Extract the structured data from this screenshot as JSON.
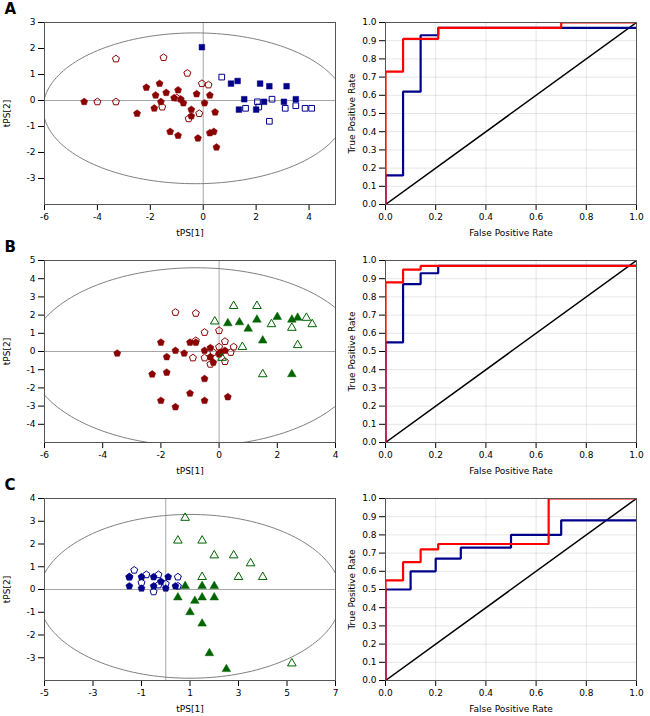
{
  "chart_data": [
    {
      "type": "scatter",
      "annotations": [
        "A"
      ],
      "xlabel": "tPS[1]",
      "ylabel": "tPS[2]",
      "xlim": [
        -6,
        5
      ],
      "xticks": [
        -6,
        -4,
        -2,
        0,
        2,
        4
      ],
      "ylim": [
        -4,
        3
      ],
      "yticks": [
        -3,
        -2,
        -1,
        0,
        1,
        2,
        3
      ],
      "grid": false,
      "ellipse": {
        "cx": -0.3,
        "cy": -0.3,
        "width": 11.5,
        "height": 5.8,
        "angle": 0
      },
      "hlines": [
        0
      ],
      "vlines": [
        0
      ],
      "series": [
        {
          "color": "#8B0000",
          "marker": "pentagon",
          "x": [
            -1.8,
            -1.6,
            -1.4,
            -1.1,
            -0.95,
            -0.75,
            -0.45,
            -0.25,
            0.05,
            0.25,
            -4.5,
            -2.5,
            -1.85,
            -0.85,
            0.45,
            0.25,
            -0.95,
            -0.45,
            -2.15,
            -1.65,
            -1.25,
            0.4,
            0.5,
            -0.2
          ],
          "values": [
            0.2,
            -0.05,
            0.3,
            0.1,
            0.4,
            -0.1,
            -0.6,
            0.25,
            -0.1,
            0.2,
            -0.05,
            -0.5,
            -0.3,
            0.05,
            -0.45,
            -1.25,
            -1.35,
            -0.35,
            0.5,
            0.65,
            -1.2,
            -1.2,
            -1.8,
            -1.45
          ]
        },
        {
          "color": "#8B0000",
          "marker": "pentagon-open",
          "x": [
            -3.3,
            -1.5,
            -0.6,
            -0.05,
            0.2,
            -4.0,
            -1.55,
            -0.15,
            -3.3,
            -1.0,
            -0.55
          ],
          "values": [
            1.6,
            1.65,
            1.05,
            0.65,
            0.6,
            -0.05,
            -0.25,
            -0.5,
            -0.05,
            0.1,
            -0.7
          ]
        },
        {
          "color": "#00008B",
          "marker": "square",
          "x": [
            -0.05,
            1.05,
            2.15,
            2.5,
            3.15,
            1.55,
            2.3,
            3.05,
            2.0,
            3.5,
            1.35,
            1.3
          ],
          "values": [
            2.05,
            0.65,
            0.65,
            0.55,
            0.55,
            0.05,
            -0.05,
            -0.05,
            -0.35,
            0.05,
            -0.35,
            0.75
          ]
        },
        {
          "color": "#00008B",
          "marker": "square-open",
          "x": [
            0.7,
            2.6,
            2.1,
            3.5,
            2.05,
            4.1,
            3.85,
            3.1,
            1.6,
            2.5
          ],
          "values": [
            0.9,
            0.05,
            -0.25,
            -0.2,
            -0.05,
            -0.3,
            -0.3,
            -0.3,
            -0.3,
            -0.8
          ]
        }
      ]
    },
    {
      "type": "line",
      "xlabel": "False Positive Rate",
      "ylabel": "True Positive Rate",
      "xlim": [
        0,
        1
      ],
      "xticks": [
        {
          "value": 0,
          "label": "0.0"
        },
        {
          "value": 0.2,
          "label": "0.2"
        },
        {
          "value": 0.4,
          "label": "0.4"
        },
        {
          "value": 0.6,
          "label": "0.6"
        },
        {
          "value": 0.8,
          "label": "0.8"
        },
        {
          "value": 1,
          "label": "1.0"
        }
      ],
      "ylim": [
        0,
        1
      ],
      "yticks": [
        {
          "value": 0,
          "label": "0.0"
        },
        {
          "value": 0.1,
          "label": "0.1"
        },
        {
          "value": 0.2,
          "label": "0.2"
        },
        {
          "value": 0.3,
          "label": "0.3"
        },
        {
          "value": 0.4,
          "label": "0.4"
        },
        {
          "value": 0.5,
          "label": "0.5"
        },
        {
          "value": 0.6,
          "label": "0.6"
        },
        {
          "value": 0.7,
          "label": "0.7"
        },
        {
          "value": 0.8,
          "label": "0.8"
        },
        {
          "value": 0.9,
          "label": "0.9"
        },
        {
          "value": 1,
          "label": "1.0"
        }
      ],
      "grid": true,
      "series": [
        {
          "color": "black",
          "x": [
            0,
            1
          ],
          "values": [
            0,
            1
          ]
        },
        {
          "color": "#00008B",
          "x": [
            0.0,
            0.0,
            0.07,
            0.07,
            0.14,
            0.14,
            0.21,
            0.21,
            1.0
          ],
          "values": [
            0.0,
            0.16,
            0.16,
            0.62,
            0.62,
            0.93,
            0.93,
            0.97,
            0.97
          ]
        },
        {
          "color": "red",
          "x": [
            0.0,
            0.0,
            0.07,
            0.07,
            0.21,
            0.21,
            0.7,
            0.7,
            1.0
          ],
          "values": [
            0.0,
            0.73,
            0.73,
            0.91,
            0.91,
            0.97,
            0.97,
            1.0,
            1.0
          ]
        }
      ]
    },
    {
      "type": "scatter",
      "annotations": [
        "B"
      ],
      "xlabel": "tPS[1]",
      "ylabel": "tPS[2]",
      "xlim": [
        -6,
        4
      ],
      "xticks": [
        -6,
        -4,
        -2,
        0,
        2,
        4
      ],
      "ylim": [
        -5,
        5
      ],
      "yticks": [
        -4,
        -3,
        -2,
        -1,
        0,
        1,
        2,
        3,
        4,
        5
      ],
      "grid": false,
      "ellipse": {
        "cx": -0.8,
        "cy": -0.3,
        "width": 11.5,
        "height": 9.8,
        "angle": 0
      },
      "hlines": [
        0
      ],
      "vlines": [
        0
      ],
      "series": [
        {
          "color": "#8B0000",
          "marker": "pentagon",
          "x": [
            -2.0,
            -1.8,
            -1.5,
            -1.2,
            -0.8,
            -0.5,
            -0.3,
            0.05,
            -3.5,
            -2.3,
            -2.0,
            -1.5,
            -1.0,
            -0.5,
            0.3,
            -0.2,
            -0.3,
            -1.8,
            -1.0,
            0.2,
            -0.5,
            0.0
          ],
          "values": [
            0.5,
            -0.3,
            0.05,
            -0.1,
            0.5,
            0.05,
            0.2,
            -0.05,
            -0.1,
            -1.25,
            -2.7,
            -3.05,
            -2.3,
            -2.7,
            -2.5,
            -0.6,
            -0.3,
            -1.15,
            0.5,
            0.05,
            -1.5,
            -0.15
          ]
        },
        {
          "color": "#8B0000",
          "marker": "pentagon-open",
          "x": [
            -1.5,
            -0.8,
            -0.5,
            0.0,
            0.2,
            -0.8,
            -0.2,
            0.4,
            0.2,
            -0.5,
            0.0,
            -0.3,
            -0.9,
            0.5
          ],
          "values": [
            2.15,
            2.1,
            1.05,
            1.15,
            0.55,
            0.6,
            -0.05,
            -0.05,
            -0.55,
            -0.35,
            0.25,
            -0.7,
            -0.35,
            0.25
          ]
        },
        {
          "color": "#006400",
          "marker": "triangle",
          "x": [
            0.3,
            0.7,
            1.3,
            2.0,
            1.0,
            2.5,
            2.7,
            1.5,
            2.5
          ],
          "values": [
            1.55,
            1.6,
            1.75,
            1.9,
            1.25,
            1.75,
            1.85,
            0.6,
            -1.25
          ]
        },
        {
          "color": "#006400",
          "marker": "triangle-open",
          "x": [
            -0.15,
            0.5,
            1.3,
            1.8,
            2.5,
            3.0,
            3.2,
            2.7,
            0.8,
            0.1,
            1.5
          ],
          "values": [
            1.65,
            2.5,
            2.5,
            1.5,
            1.3,
            1.85,
            1.5,
            0.35,
            0.25,
            -0.35,
            -1.25
          ]
        }
      ]
    },
    {
      "type": "line",
      "xlabel": "False Positive Rate",
      "ylabel": "True Positive Rate",
      "xlim": [
        0,
        1
      ],
      "xticks": [
        {
          "value": 0,
          "label": "0.0"
        },
        {
          "value": 0.2,
          "label": "0.2"
        },
        {
          "value": 0.4,
          "label": "0.4"
        },
        {
          "value": 0.6,
          "label": "0.6"
        },
        {
          "value": 0.8,
          "label": "0.8"
        },
        {
          "value": 1,
          "label": "1.0"
        }
      ],
      "ylim": [
        0,
        1
      ],
      "yticks": [
        {
          "value": 0,
          "label": "0.0"
        },
        {
          "value": 0.1,
          "label": "0.1"
        },
        {
          "value": 0.2,
          "label": "0.2"
        },
        {
          "value": 0.3,
          "label": "0.3"
        },
        {
          "value": 0.4,
          "label": "0.4"
        },
        {
          "value": 0.5,
          "label": "0.5"
        },
        {
          "value": 0.6,
          "label": "0.6"
        },
        {
          "value": 0.7,
          "label": "0.7"
        },
        {
          "value": 0.8,
          "label": "0.8"
        },
        {
          "value": 0.9,
          "label": "0.9"
        },
        {
          "value": 1,
          "label": "1.0"
        }
      ],
      "grid": true,
      "series": [
        {
          "color": "black",
          "x": [
            0,
            1
          ],
          "values": [
            0,
            1
          ]
        },
        {
          "color": "#00008B",
          "x": [
            0.0,
            0.0,
            0.07,
            0.07,
            0.14,
            0.14,
            0.21,
            0.21,
            1.0
          ],
          "values": [
            0.0,
            0.55,
            0.55,
            0.87,
            0.87,
            0.93,
            0.93,
            0.97,
            0.97
          ]
        },
        {
          "color": "red",
          "x": [
            0.0,
            0.0,
            0.07,
            0.07,
            0.14,
            0.14,
            1.0
          ],
          "values": [
            0.0,
            0.88,
            0.88,
            0.95,
            0.95,
            0.97,
            0.97
          ]
        }
      ]
    },
    {
      "type": "scatter",
      "annotations": [
        "C"
      ],
      "xlabel": "tPS[1]",
      "ylabel": "tPS[2]",
      "xlim": [
        -5,
        7
      ],
      "xticks": [
        -5,
        -3,
        -1,
        1,
        3,
        5,
        7
      ],
      "ylim": [
        -4,
        4
      ],
      "yticks": [
        -3,
        -2,
        -1,
        0,
        1,
        2,
        3,
        4
      ],
      "grid": false,
      "ellipse": {
        "cx": 1.0,
        "cy": -0.3,
        "width": 12.5,
        "height": 7.2,
        "angle": 0
      },
      "hlines": [
        0
      ],
      "vlines": [
        0
      ],
      "series": [
        {
          "color": "#00008B",
          "marker": "pentagon",
          "x": [
            -1.5,
            -1.0,
            -0.5,
            -0.2,
            0.1,
            -1.5,
            -1.0,
            -0.5,
            0.0,
            0.4
          ],
          "values": [
            0.55,
            0.55,
            0.55,
            0.35,
            0.55,
            0.15,
            0.05,
            0.15,
            0.05,
            0.15
          ]
        },
        {
          "color": "#00008B",
          "marker": "pentagon-open",
          "x": [
            -1.5,
            -1.3,
            -0.8,
            -0.3,
            -0.3,
            0.0,
            0.5,
            0.5,
            -1.0,
            -0.5
          ],
          "values": [
            0.55,
            0.85,
            0.65,
            0.65,
            0.2,
            0.25,
            0.55,
            0.15,
            0.3,
            -0.1
          ]
        },
        {
          "color": "#006400",
          "marker": "triangle",
          "x": [
            0.8,
            1.5,
            2.0,
            1.2,
            1.0,
            1.5,
            1.8,
            2.5,
            0.5,
            1.5,
            2.0
          ],
          "values": [
            0.15,
            0.15,
            0.15,
            -0.5,
            -1.0,
            -1.5,
            -2.8,
            -3.5,
            -0.35,
            -0.35,
            -0.35
          ]
        },
        {
          "color": "#006400",
          "marker": "triangle-open",
          "x": [
            0.8,
            1.5,
            2.0,
            2.8,
            3.5,
            5.2,
            1.5,
            3.0,
            0.5,
            4.0
          ],
          "values": [
            3.15,
            2.15,
            1.5,
            1.5,
            1.15,
            -3.25,
            0.55,
            0.55,
            2.15,
            0.55
          ]
        }
      ]
    },
    {
      "type": "line",
      "xlabel": "False Positive Rate",
      "ylabel": "True Positive Rate",
      "xlim": [
        0,
        1
      ],
      "xticks": [
        {
          "value": 0,
          "label": "0.0"
        },
        {
          "value": 0.2,
          "label": "0.2"
        },
        {
          "value": 0.4,
          "label": "0.4"
        },
        {
          "value": 0.6,
          "label": "0.6"
        },
        {
          "value": 0.8,
          "label": "0.8"
        },
        {
          "value": 1,
          "label": "1.0"
        }
      ],
      "ylim": [
        0,
        1
      ],
      "yticks": [
        {
          "value": 0,
          "label": "0.0"
        },
        {
          "value": 0.1,
          "label": "0.1"
        },
        {
          "value": 0.2,
          "label": "0.2"
        },
        {
          "value": 0.3,
          "label": "0.3"
        },
        {
          "value": 0.4,
          "label": "0.4"
        },
        {
          "value": 0.5,
          "label": "0.5"
        },
        {
          "value": 0.6,
          "label": "0.6"
        },
        {
          "value": 0.7,
          "label": "0.7"
        },
        {
          "value": 0.8,
          "label": "0.8"
        },
        {
          "value": 0.9,
          "label": "0.9"
        },
        {
          "value": 1,
          "label": "1.0"
        }
      ],
      "grid": true,
      "series": [
        {
          "color": "black",
          "x": [
            0,
            1
          ],
          "values": [
            0,
            1
          ]
        },
        {
          "color": "#00008B",
          "x": [
            0.0,
            0.0,
            0.1,
            0.1,
            0.2,
            0.2,
            0.3,
            0.3,
            0.5,
            0.5,
            0.7,
            0.7,
            1.0
          ],
          "values": [
            0.0,
            0.5,
            0.5,
            0.6,
            0.6,
            0.67,
            0.67,
            0.73,
            0.73,
            0.8,
            0.8,
            0.88,
            0.88
          ]
        },
        {
          "color": "red",
          "x": [
            0.0,
            0.0,
            0.07,
            0.07,
            0.14,
            0.14,
            0.21,
            0.21,
            0.65,
            0.65,
            1.0
          ],
          "values": [
            0.0,
            0.55,
            0.55,
            0.65,
            0.65,
            0.72,
            0.72,
            0.75,
            0.75,
            1.0,
            1.0
          ]
        }
      ]
    }
  ]
}
